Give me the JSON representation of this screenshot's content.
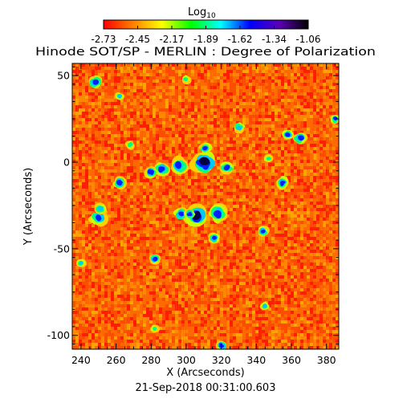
{
  "figure": {
    "title": "Hinode SOT/SP - MERLIN : Degree of Polarization",
    "timestamp": "21-Sep-2018 00:31:00.603",
    "xlabel": "X (Arcseconds)",
    "ylabel": "Y (Arcseconds)",
    "colorbar": {
      "label": "Log",
      "label_subscript": "10",
      "tick_labels": [
        "-2.73",
        "-2.45",
        "-2.17",
        "-1.89",
        "-1.62",
        "-1.34",
        "-1.06"
      ],
      "range": [
        -2.73,
        -1.06
      ],
      "colormap": [
        "#ff0000",
        "#ff7f00",
        "#ffff00",
        "#00ff00",
        "#00ffff",
        "#0000ff",
        "#5a00b4",
        "#000000"
      ]
    },
    "x_axis": {
      "range": [
        235,
        387
      ],
      "tick_labels": [
        "240",
        "260",
        "280",
        "300",
        "320",
        "340",
        "360",
        "380"
      ],
      "ticks": [
        240,
        260,
        280,
        300,
        320,
        340,
        360,
        380
      ]
    },
    "y_axis": {
      "range": [
        -108,
        57
      ],
      "tick_labels": [
        "50",
        "0",
        "-50",
        "-100"
      ],
      "ticks": [
        50,
        0,
        -50,
        -100
      ]
    },
    "background_colors": [
      "#ff1f00",
      "#ff4d00",
      "#ff6a00",
      "#ff8800",
      "#ffa500"
    ],
    "patch_colors": [
      "#ffd000",
      "#c8ff00",
      "#00ff80",
      "#00c8ff",
      "#0020ff",
      "#000040"
    ],
    "patches": [
      {
        "x": 310,
        "y": 0,
        "r": 5.5,
        "level": 1.0
      },
      {
        "x": 296,
        "y": -2,
        "r": 4,
        "level": 0.85
      },
      {
        "x": 286,
        "y": -4,
        "r": 3.5,
        "level": 0.8
      },
      {
        "x": 323,
        "y": -3,
        "r": 3,
        "level": 0.75
      },
      {
        "x": 306,
        "y": -31,
        "r": 5,
        "level": 0.95
      },
      {
        "x": 318,
        "y": -30,
        "r": 4,
        "level": 0.85
      },
      {
        "x": 297,
        "y": -30,
        "r": 3,
        "level": 0.8
      },
      {
        "x": 280,
        "y": -6,
        "r": 3,
        "level": 0.8
      },
      {
        "x": 355,
        "y": -12,
        "r": 3,
        "level": 0.85
      },
      {
        "x": 262,
        "y": -12,
        "r": 3,
        "level": 0.75
      },
      {
        "x": 250,
        "y": -32,
        "r": 3.5,
        "level": 0.8
      },
      {
        "x": 248,
        "y": 46,
        "r": 3,
        "level": 0.85
      },
      {
        "x": 311,
        "y": 8,
        "r": 2.5,
        "level": 0.8
      },
      {
        "x": 365,
        "y": 14,
        "r": 3,
        "level": 0.85
      },
      {
        "x": 344,
        "y": -40,
        "r": 2.5,
        "level": 0.8
      },
      {
        "x": 316,
        "y": -44,
        "r": 2.5,
        "level": 0.75
      },
      {
        "x": 320,
        "y": -106,
        "r": 2.5,
        "level": 0.85
      },
      {
        "x": 282,
        "y": -56,
        "r": 2.5,
        "level": 0.75
      },
      {
        "x": 262,
        "y": 38,
        "r": 2,
        "level": 0.6
      },
      {
        "x": 330,
        "y": 20,
        "r": 2.5,
        "level": 0.6
      },
      {
        "x": 385,
        "y": 25,
        "r": 2,
        "level": 0.85
      },
      {
        "x": 240,
        "y": -58,
        "r": 2,
        "level": 0.7
      },
      {
        "x": 300,
        "y": 48,
        "r": 2,
        "level": 0.55
      },
      {
        "x": 345,
        "y": -83,
        "r": 2,
        "level": 0.6
      },
      {
        "x": 282,
        "y": -96,
        "r": 2,
        "level": 0.55
      },
      {
        "x": 251,
        "y": -27,
        "r": 2.5,
        "level": 0.7
      },
      {
        "x": 302,
        "y": -30,
        "r": 2.5,
        "level": 0.8
      },
      {
        "x": 268,
        "y": 10,
        "r": 2,
        "level": 0.55
      },
      {
        "x": 347,
        "y": 2,
        "r": 2,
        "level": 0.55
      },
      {
        "x": 358,
        "y": 16,
        "r": 2.5,
        "level": 0.75
      }
    ]
  }
}
